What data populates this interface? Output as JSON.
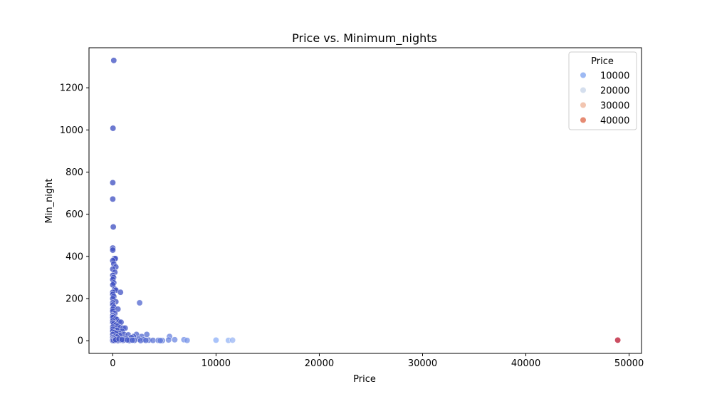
{
  "chart_data": {
    "type": "scatter",
    "title": "Price vs. Minimum_nights",
    "xlabel": "Price",
    "ylabel": "Min_night",
    "xlim": [
      -2300,
      51200
    ],
    "ylim": [
      -60,
      1390
    ],
    "xticks": [
      0,
      10000,
      20000,
      30000,
      40000,
      50000
    ],
    "xtick_labels": [
      "0",
      "10000",
      "20000",
      "30000",
      "40000",
      "50000"
    ],
    "yticks": [
      0,
      200,
      400,
      600,
      800,
      1000,
      1200
    ],
    "ytick_labels": [
      "0",
      "200",
      "400",
      "600",
      "800",
      "1000",
      "1200"
    ],
    "grid": false,
    "legend": {
      "title": "Price",
      "placement": "top-right",
      "entries": [
        {
          "label": "10000",
          "color": "#9db9f3"
        },
        {
          "label": "20000",
          "color": "#d5dfee"
        },
        {
          "label": "30000",
          "color": "#f2c5b0"
        },
        {
          "label": "40000",
          "color": "#e68b73"
        }
      ]
    },
    "color_scale": {
      "palette": "coolwarm",
      "stops": [
        {
          "value": 0,
          "color": "#3b4cc0"
        },
        {
          "value": 10000,
          "color": "#8caff8"
        },
        {
          "value": 20000,
          "color": "#dcdde0"
        },
        {
          "value": 30000,
          "color": "#f2bba0"
        },
        {
          "value": 40000,
          "color": "#e0795e"
        },
        {
          "value": 50000,
          "color": "#b40426"
        }
      ]
    },
    "points": [
      {
        "x": 100,
        "y": 1330
      },
      {
        "x": 20,
        "y": 1008
      },
      {
        "x": 0,
        "y": 750
      },
      {
        "x": 0,
        "y": 672
      },
      {
        "x": 50,
        "y": 540
      },
      {
        "x": 0,
        "y": 440
      },
      {
        "x": 0,
        "y": 430
      },
      {
        "x": 150,
        "y": 390
      },
      {
        "x": 250,
        "y": 390
      },
      {
        "x": 0,
        "y": 380
      },
      {
        "x": 100,
        "y": 365
      },
      {
        "x": 300,
        "y": 350
      },
      {
        "x": 0,
        "y": 340
      },
      {
        "x": 200,
        "y": 325
      },
      {
        "x": 0,
        "y": 310
      },
      {
        "x": 80,
        "y": 300
      },
      {
        "x": 0,
        "y": 290
      },
      {
        "x": 100,
        "y": 275
      },
      {
        "x": 0,
        "y": 265
      },
      {
        "x": 200,
        "y": 245
      },
      {
        "x": 300,
        "y": 240
      },
      {
        "x": 0,
        "y": 230
      },
      {
        "x": 750,
        "y": 230
      },
      {
        "x": 0,
        "y": 220
      },
      {
        "x": 100,
        "y": 210
      },
      {
        "x": 0,
        "y": 200
      },
      {
        "x": 300,
        "y": 185
      },
      {
        "x": 0,
        "y": 180
      },
      {
        "x": 2600,
        "y": 180
      },
      {
        "x": 0,
        "y": 170
      },
      {
        "x": 100,
        "y": 160
      },
      {
        "x": 0,
        "y": 150
      },
      {
        "x": 500,
        "y": 150
      },
      {
        "x": 0,
        "y": 140
      },
      {
        "x": 200,
        "y": 130
      },
      {
        "x": 0,
        "y": 120
      },
      {
        "x": 100,
        "y": 115
      },
      {
        "x": 0,
        "y": 110
      },
      {
        "x": 300,
        "y": 105
      },
      {
        "x": 400,
        "y": 100
      },
      {
        "x": 0,
        "y": 95
      },
      {
        "x": 600,
        "y": 90
      },
      {
        "x": 800,
        "y": 88
      },
      {
        "x": 0,
        "y": 85
      },
      {
        "x": 100,
        "y": 80
      },
      {
        "x": 300,
        "y": 75
      },
      {
        "x": 500,
        "y": 70
      },
      {
        "x": 0,
        "y": 65
      },
      {
        "x": 700,
        "y": 62
      },
      {
        "x": 1000,
        "y": 60
      },
      {
        "x": 1200,
        "y": 60
      },
      {
        "x": 200,
        "y": 58
      },
      {
        "x": 0,
        "y": 55
      },
      {
        "x": 400,
        "y": 50
      },
      {
        "x": 900,
        "y": 45
      },
      {
        "x": 0,
        "y": 45
      },
      {
        "x": 150,
        "y": 40
      },
      {
        "x": 600,
        "y": 35
      },
      {
        "x": 300,
        "y": 35
      },
      {
        "x": 1100,
        "y": 30
      },
      {
        "x": 1500,
        "y": 28
      },
      {
        "x": 2300,
        "y": 30
      },
      {
        "x": 3300,
        "y": 30
      },
      {
        "x": 0,
        "y": 30
      },
      {
        "x": 5500,
        "y": 20
      },
      {
        "x": 2000,
        "y": 20
      },
      {
        "x": 2800,
        "y": 20
      },
      {
        "x": 1800,
        "y": 15
      },
      {
        "x": 700,
        "y": 25
      },
      {
        "x": 200,
        "y": 22
      },
      {
        "x": 400,
        "y": 18
      },
      {
        "x": 0,
        "y": 15
      },
      {
        "x": 100,
        "y": 12
      },
      {
        "x": 1300,
        "y": 10
      },
      {
        "x": 2500,
        "y": 8
      },
      {
        "x": 3000,
        "y": 5
      },
      {
        "x": 3500,
        "y": 3
      },
      {
        "x": 3900,
        "y": 2
      },
      {
        "x": 4400,
        "y": 2
      },
      {
        "x": 4800,
        "y": 1
      },
      {
        "x": 4600,
        "y": 1
      },
      {
        "x": 5400,
        "y": 4
      },
      {
        "x": 6000,
        "y": 5
      },
      {
        "x": 6900,
        "y": 5
      },
      {
        "x": 7200,
        "y": 2
      },
      {
        "x": 10000,
        "y": 3
      },
      {
        "x": 11200,
        "y": 2
      },
      {
        "x": 11600,
        "y": 3
      },
      {
        "x": 48900,
        "y": 3
      },
      {
        "x": 0,
        "y": 5
      },
      {
        "x": 0,
        "y": 1
      },
      {
        "x": 100,
        "y": 1
      },
      {
        "x": 200,
        "y": 2
      },
      {
        "x": 500,
        "y": 1
      },
      {
        "x": 800,
        "y": 3
      },
      {
        "x": 1000,
        "y": 2
      },
      {
        "x": 1600,
        "y": 1
      },
      {
        "x": 2100,
        "y": 2
      },
      {
        "x": 2700,
        "y": 1
      },
      {
        "x": 3200,
        "y": 2
      },
      {
        "x": 300,
        "y": 5
      },
      {
        "x": 600,
        "y": 8
      },
      {
        "x": 900,
        "y": 6
      },
      {
        "x": 1400,
        "y": 4
      },
      {
        "x": 1900,
        "y": 3
      }
    ]
  }
}
